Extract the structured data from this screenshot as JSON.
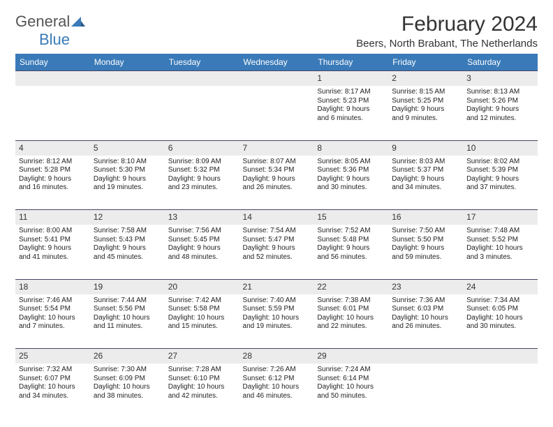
{
  "brand": {
    "general": "General",
    "blue": "Blue"
  },
  "title": "February 2024",
  "location": "Beers, North Brabant, The Netherlands",
  "colors": {
    "header_bg": "#3a7ab8",
    "daynum_bg": "#ececec",
    "rule": "#2a3b5a"
  },
  "day_headers": [
    "Sunday",
    "Monday",
    "Tuesday",
    "Wednesday",
    "Thursday",
    "Friday",
    "Saturday"
  ],
  "weeks": [
    {
      "nums": [
        "",
        "",
        "",
        "",
        "1",
        "2",
        "3"
      ],
      "info": [
        [],
        [],
        [],
        [],
        [
          "Sunrise: 8:17 AM",
          "Sunset: 5:23 PM",
          "Daylight: 9 hours",
          "and 6 minutes."
        ],
        [
          "Sunrise: 8:15 AM",
          "Sunset: 5:25 PM",
          "Daylight: 9 hours",
          "and 9 minutes."
        ],
        [
          "Sunrise: 8:13 AM",
          "Sunset: 5:26 PM",
          "Daylight: 9 hours",
          "and 12 minutes."
        ]
      ]
    },
    {
      "nums": [
        "4",
        "5",
        "6",
        "7",
        "8",
        "9",
        "10"
      ],
      "info": [
        [
          "Sunrise: 8:12 AM",
          "Sunset: 5:28 PM",
          "Daylight: 9 hours",
          "and 16 minutes."
        ],
        [
          "Sunrise: 8:10 AM",
          "Sunset: 5:30 PM",
          "Daylight: 9 hours",
          "and 19 minutes."
        ],
        [
          "Sunrise: 8:09 AM",
          "Sunset: 5:32 PM",
          "Daylight: 9 hours",
          "and 23 minutes."
        ],
        [
          "Sunrise: 8:07 AM",
          "Sunset: 5:34 PM",
          "Daylight: 9 hours",
          "and 26 minutes."
        ],
        [
          "Sunrise: 8:05 AM",
          "Sunset: 5:36 PM",
          "Daylight: 9 hours",
          "and 30 minutes."
        ],
        [
          "Sunrise: 8:03 AM",
          "Sunset: 5:37 PM",
          "Daylight: 9 hours",
          "and 34 minutes."
        ],
        [
          "Sunrise: 8:02 AM",
          "Sunset: 5:39 PM",
          "Daylight: 9 hours",
          "and 37 minutes."
        ]
      ]
    },
    {
      "nums": [
        "11",
        "12",
        "13",
        "14",
        "15",
        "16",
        "17"
      ],
      "info": [
        [
          "Sunrise: 8:00 AM",
          "Sunset: 5:41 PM",
          "Daylight: 9 hours",
          "and 41 minutes."
        ],
        [
          "Sunrise: 7:58 AM",
          "Sunset: 5:43 PM",
          "Daylight: 9 hours",
          "and 45 minutes."
        ],
        [
          "Sunrise: 7:56 AM",
          "Sunset: 5:45 PM",
          "Daylight: 9 hours",
          "and 48 minutes."
        ],
        [
          "Sunrise: 7:54 AM",
          "Sunset: 5:47 PM",
          "Daylight: 9 hours",
          "and 52 minutes."
        ],
        [
          "Sunrise: 7:52 AM",
          "Sunset: 5:48 PM",
          "Daylight: 9 hours",
          "and 56 minutes."
        ],
        [
          "Sunrise: 7:50 AM",
          "Sunset: 5:50 PM",
          "Daylight: 9 hours",
          "and 59 minutes."
        ],
        [
          "Sunrise: 7:48 AM",
          "Sunset: 5:52 PM",
          "Daylight: 10 hours",
          "and 3 minutes."
        ]
      ]
    },
    {
      "nums": [
        "18",
        "19",
        "20",
        "21",
        "22",
        "23",
        "24"
      ],
      "info": [
        [
          "Sunrise: 7:46 AM",
          "Sunset: 5:54 PM",
          "Daylight: 10 hours",
          "and 7 minutes."
        ],
        [
          "Sunrise: 7:44 AM",
          "Sunset: 5:56 PM",
          "Daylight: 10 hours",
          "and 11 minutes."
        ],
        [
          "Sunrise: 7:42 AM",
          "Sunset: 5:58 PM",
          "Daylight: 10 hours",
          "and 15 minutes."
        ],
        [
          "Sunrise: 7:40 AM",
          "Sunset: 5:59 PM",
          "Daylight: 10 hours",
          "and 19 minutes."
        ],
        [
          "Sunrise: 7:38 AM",
          "Sunset: 6:01 PM",
          "Daylight: 10 hours",
          "and 22 minutes."
        ],
        [
          "Sunrise: 7:36 AM",
          "Sunset: 6:03 PM",
          "Daylight: 10 hours",
          "and 26 minutes."
        ],
        [
          "Sunrise: 7:34 AM",
          "Sunset: 6:05 PM",
          "Daylight: 10 hours",
          "and 30 minutes."
        ]
      ]
    },
    {
      "nums": [
        "25",
        "26",
        "27",
        "28",
        "29",
        "",
        ""
      ],
      "info": [
        [
          "Sunrise: 7:32 AM",
          "Sunset: 6:07 PM",
          "Daylight: 10 hours",
          "and 34 minutes."
        ],
        [
          "Sunrise: 7:30 AM",
          "Sunset: 6:09 PM",
          "Daylight: 10 hours",
          "and 38 minutes."
        ],
        [
          "Sunrise: 7:28 AM",
          "Sunset: 6:10 PM",
          "Daylight: 10 hours",
          "and 42 minutes."
        ],
        [
          "Sunrise: 7:26 AM",
          "Sunset: 6:12 PM",
          "Daylight: 10 hours",
          "and 46 minutes."
        ],
        [
          "Sunrise: 7:24 AM",
          "Sunset: 6:14 PM",
          "Daylight: 10 hours",
          "and 50 minutes."
        ],
        [],
        []
      ]
    }
  ]
}
